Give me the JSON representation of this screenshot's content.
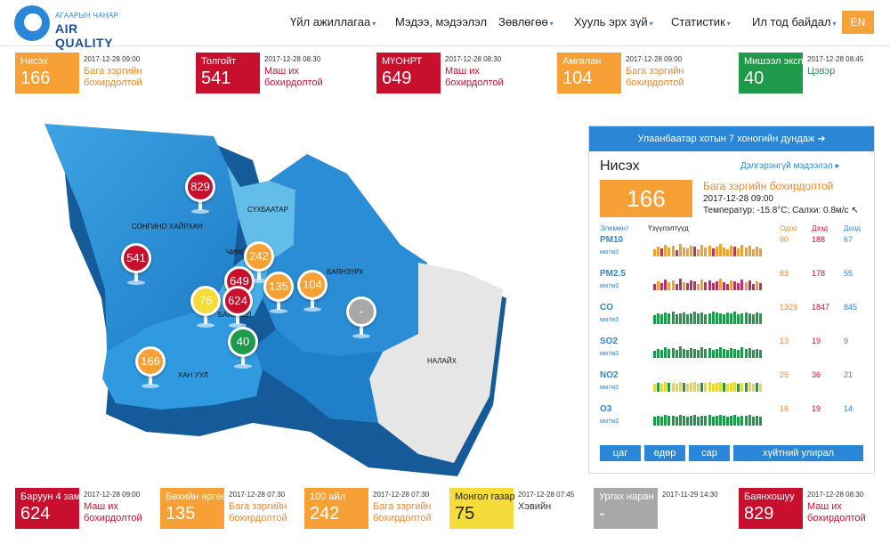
{
  "header": {
    "logo_small": "АГААРЫН ЧАНАР",
    "logo_big": "AIR QUALITY",
    "nav": [
      {
        "label": "Үйл ажиллагаа",
        "dropdown": true
      },
      {
        "label": "Мэдээ, мэдээлэл",
        "dropdown": false
      },
      {
        "label": "Зөвлөгөө",
        "dropdown": true
      },
      {
        "label": "Хууль эрх зүй",
        "dropdown": true
      },
      {
        "label": "Статистик",
        "dropdown": true
      },
      {
        "label": "Ил тод байдал",
        "dropdown": true
      }
    ],
    "lang": "EN"
  },
  "top_stations": [
    {
      "name": "Нисэх",
      "value": "166",
      "time": "2017-12-28 09:00",
      "status": "Бага зэргийн бохирдолтой",
      "color": "#f7a036",
      "status_color": "#f0862a"
    },
    {
      "name": "Толгойт",
      "value": "541",
      "time": "2017-12-28 08:30",
      "status": "Маш их бохирдолтой",
      "color": "#c8102e",
      "status_color": "#c8102e"
    },
    {
      "name": "МҮОНРТ",
      "value": "649",
      "time": "2017-12-28 08:30",
      "status": "Маш их бохирдолтой",
      "color": "#c8102e",
      "status_color": "#c8102e"
    },
    {
      "name": "Амгалан",
      "value": "104",
      "time": "2017-12-28 09:00",
      "status": "Бага зэргийн бохирдолтой",
      "color": "#f7a036",
      "status_color": "#f0862a"
    },
    {
      "name": "Мишээл экспо",
      "value": "40",
      "time": "2017-12-28 08:45",
      "status": "Цэвэр",
      "color": "#1e9a4a",
      "status_color": "#1e9a4a"
    }
  ],
  "bottom_stations": [
    {
      "name": "Баруун 4 зам",
      "value": "624",
      "time": "2017-12-28 09:00",
      "status": "Маш их бохирдолтой",
      "color": "#c8102e",
      "status_color": "#c8102e"
    },
    {
      "name": "Бөхийн өргөө",
      "value": "135",
      "time": "2017-12-28 07:30",
      "status": "Бага зэргийн бохирдолтой",
      "color": "#f7a036",
      "status_color": "#f0862a"
    },
    {
      "name": "100 айл",
      "value": "242",
      "time": "2017-12-28 07:30",
      "status": "Бага зэргийн бохирдолтой",
      "color": "#f7a036",
      "status_color": "#f0862a"
    },
    {
      "name": "Монгол газар",
      "value": "75",
      "time": "2017-12-28 07:45",
      "status": "Хэвийн",
      "color": "#f5dc39",
      "status_color": "#333333"
    },
    {
      "name": "Ургах наран",
      "value": "-",
      "time": "2017-11-29 14:30",
      "status": "",
      "color": "#a8a8a8",
      "status_color": "#333333"
    },
    {
      "name": "Баянхошуу",
      "value": "829",
      "time": "2017-12-28 08:30",
      "status": "Маш их бохирдолтой",
      "color": "#c8102e",
      "status_color": "#c8102e"
    }
  ],
  "map": {
    "districts": [
      "СОНГИНО ХАЙРХАН",
      "СҮХБААТАР",
      "ЧИНГЭ",
      "БАЯНЗҮРХ",
      "БАЯНГОЛ",
      "ХАН УУЛ",
      "НАЛАЙХ"
    ],
    "pins": [
      {
        "value": "829",
        "color": "#c8102e"
      },
      {
        "value": "541",
        "color": "#c8102e"
      },
      {
        "value": "242",
        "color": "#f7a036"
      },
      {
        "value": "649",
        "color": "#c8102e"
      },
      {
        "value": "624",
        "color": "#c8102e"
      },
      {
        "value": "135",
        "color": "#f7a036"
      },
      {
        "value": "104",
        "color": "#f7a036"
      },
      {
        "value": "75",
        "color": "#f5dc39"
      },
      {
        "value": "40",
        "color": "#1e9a4a"
      },
      {
        "value": "166",
        "color": "#f7a036"
      },
      {
        "value": "-",
        "color": "#a8a8a8"
      }
    ]
  },
  "panel": {
    "header": "Улаанбаатар хотын 7 хоногийн дундаж",
    "station": "Нисэх",
    "more_link": "Дэлгэрэнгүй мэдээлэл",
    "value": "166",
    "status": "Бага зэргийн бохирдолтой",
    "time": "2017-12-28 09:00",
    "weather": "Температур: -15.8°C; Салхи: 0.8м/с",
    "col_element": "Элемент",
    "col_indicator": "Үзүүлэлтүүд",
    "col_now": "Одоо",
    "col_max": "Дээд",
    "col_min": "Доод",
    "rows": [
      {
        "name": "PM10",
        "unit": "мкг/м3",
        "now": "90",
        "max": "188",
        "min": "67",
        "bar_color": "#f0a030",
        "alt_color": "#b8336a"
      },
      {
        "name": "PM2.5",
        "unit": "мкг/м3",
        "now": "83",
        "max": "178",
        "min": "55",
        "bar_color": "#b8336a",
        "alt_color": "#f0a030"
      },
      {
        "name": "CO",
        "unit": "мкг/м3",
        "now": "1329",
        "max": "1847",
        "min": "845",
        "bar_color": "#1e9a4a",
        "alt_color": "#1e9a4a"
      },
      {
        "name": "SO2",
        "unit": "мкг/м3",
        "now": "13",
        "max": "19",
        "min": "9",
        "bar_color": "#1e9a4a",
        "alt_color": "#1e9a4a"
      },
      {
        "name": "NO2",
        "unit": "мкг/м3",
        "now": "25",
        "max": "36",
        "min": "21",
        "bar_color": "#1e9a4a",
        "alt_color": "#e8d83a"
      },
      {
        "name": "O3",
        "unit": "мкг/м3",
        "now": "16",
        "max": "19",
        "min": "14",
        "bar_color": "#1e9a4a",
        "alt_color": "#1e9a4a"
      }
    ],
    "tabs": [
      "цаг",
      "өдөр",
      "сар",
      "хүйтний улирал"
    ]
  }
}
